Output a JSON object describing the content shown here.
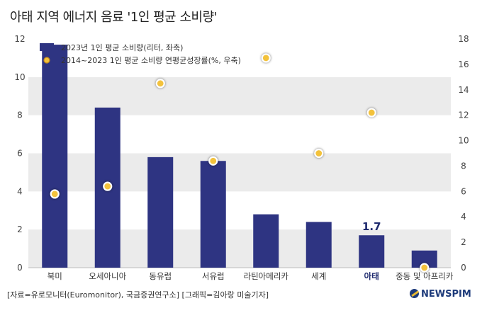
{
  "title": "아태 지역 에너지 음료 '1인 평균 소비량'",
  "footer": "[자료=유로모니터(Euromonitor), 국금증권연구소] [그래픽=김아랑 미술기자]",
  "logo_text": "NEWSPIM",
  "colors": {
    "bar": "#2e3482",
    "dot_fill": "#f3c23c",
    "dot_ring": "#ffffff",
    "band": "#ebebeb",
    "logo": "#1d3a7a"
  },
  "chart_data": {
    "type": "bar",
    "title": "아태 지역 에너지 음료 '1인 평균 소비량'",
    "categories": [
      "북미",
      "오세아니아",
      "동유럽",
      "서유럽",
      "라틴아메리카",
      "세계",
      "아태",
      "중동 및 아프리카"
    ],
    "highlight_category": "아태",
    "series": [
      {
        "name": "2023년 1인 평균 소비량(리터, 좌축)",
        "type": "bar",
        "axis": "left",
        "values": [
          11.7,
          8.4,
          5.8,
          5.6,
          2.8,
          2.4,
          1.7,
          0.9
        ]
      },
      {
        "name": "2014~2023 1인 평균 소비량 연평균성장률(%, 우축)",
        "type": "scatter",
        "axis": "right",
        "values": [
          5.8,
          6.4,
          14.5,
          8.4,
          16.5,
          9.0,
          12.2,
          0.0
        ]
      }
    ],
    "annotations": [
      {
        "category": "아태",
        "text": "1.7"
      }
    ],
    "y_left": {
      "range": [
        0,
        12
      ],
      "ticks": [
        "0",
        "2",
        "4",
        "6",
        "8",
        "10",
        "12"
      ]
    },
    "y_right": {
      "range": [
        0,
        18
      ],
      "ticks": [
        "0",
        "2",
        "4",
        "6",
        "8",
        "10",
        "12",
        "14",
        "16",
        "18"
      ]
    },
    "grid": "alternating horizontal bands",
    "legend": "top-left"
  }
}
